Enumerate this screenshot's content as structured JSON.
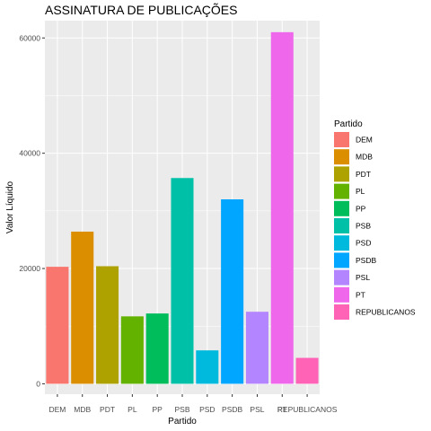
{
  "chart_data": {
    "type": "bar",
    "title": "ASSINATURA DE PUBLICAÇÕES",
    "xlabel": "Partido",
    "ylabel": "Valor Líquido",
    "categories": [
      "DEM",
      "MDB",
      "PDT",
      "PL",
      "PP",
      "PSB",
      "PSD",
      "PSDB",
      "PSL",
      "PT",
      "REPUBLICANOS"
    ],
    "values": [
      20300,
      26400,
      20400,
      11700,
      12200,
      35700,
      5800,
      32000,
      12500,
      61000,
      4500
    ],
    "colors": [
      "#F8766D",
      "#DB8E00",
      "#AEA200",
      "#64B200",
      "#00BD5C",
      "#00C1A7",
      "#00BADE",
      "#00A6FF",
      "#B385FF",
      "#EF67EB",
      "#FF63B6"
    ],
    "yticks": [
      0,
      20000,
      40000,
      60000
    ],
    "ytick_labels": [
      "0",
      "20000",
      "40000",
      "60000"
    ],
    "ylim": [
      -1800,
      63000
    ],
    "grid": true,
    "legend": {
      "title": "Partido",
      "placement": "right"
    }
  }
}
